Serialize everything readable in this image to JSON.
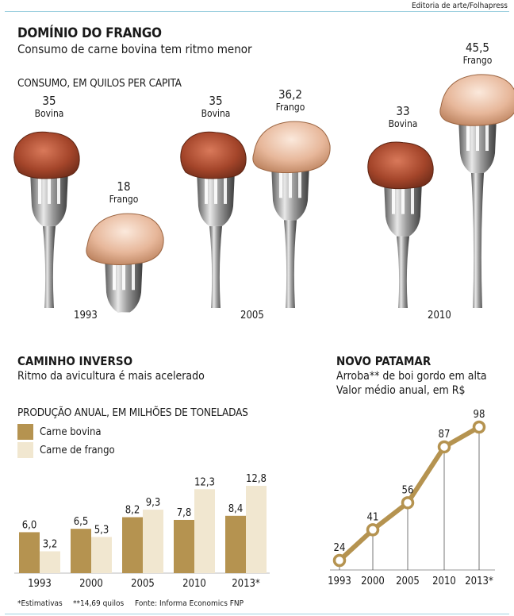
{
  "credit": "Editoria de arte/Folhapress",
  "title": "DOMÍNIO DO FRANGO",
  "subtitle": "Consumo de carne bovina tem ritmo menor",
  "colors": {
    "beef": "#b59350",
    "chicken": "#f1e7d0",
    "line": "#b59350",
    "rule": "#9fd0e0"
  },
  "consumption": {
    "heading": "CONSUMO, EM QUILOS PER CAPITA",
    "chart_data": {
      "type": "bar",
      "categories": [
        "1993",
        "2005",
        "2010"
      ],
      "series": [
        {
          "name": "Bovina",
          "values": [
            35,
            35,
            33
          ],
          "labels": [
            "35",
            "35",
            "33"
          ]
        },
        {
          "name": "Frango",
          "values": [
            18,
            36.2,
            45.5
          ],
          "labels": [
            "18",
            "36,2",
            "45,5"
          ]
        }
      ]
    }
  },
  "production": {
    "section_title": "CAMINHO INVERSO",
    "section_subtitle": "Ritmo da avicultura é mais acelerado",
    "heading": "PRODUÇÃO ANUAL, EM MILHÕES DE TONELADAS",
    "chart_data": {
      "type": "bar",
      "categories": [
        "1993",
        "2000",
        "2005",
        "2010",
        "2013*"
      ],
      "series": [
        {
          "name": "Carne bovina",
          "values": [
            6.0,
            6.5,
            8.2,
            7.8,
            8.4
          ],
          "labels": [
            "6,0",
            "6,5",
            "8,2",
            "7,8",
            "8,4"
          ]
        },
        {
          "name": "Carne de frango",
          "values": [
            3.2,
            5.3,
            9.3,
            12.3,
            12.8
          ],
          "labels": [
            "3,2",
            "5,3",
            "9,3",
            "12,3",
            "12,8"
          ]
        }
      ],
      "ylim": [
        0,
        12.8
      ]
    }
  },
  "price": {
    "section_title": "NOVO PATAMAR",
    "section_subtitle_1": "Arroba** de boi gordo em alta",
    "section_subtitle_2": "Valor médio anual, em R$",
    "chart_data": {
      "type": "line",
      "x": [
        "1993",
        "2000",
        "2005",
        "2010",
        "2013*"
      ],
      "values": [
        24,
        41,
        56,
        87,
        98
      ]
    }
  },
  "footnotes": {
    "estimates": "*Estimativas",
    "kilos": "**14,69 quilos",
    "source": "Fonte: Informa Economics FNP"
  }
}
